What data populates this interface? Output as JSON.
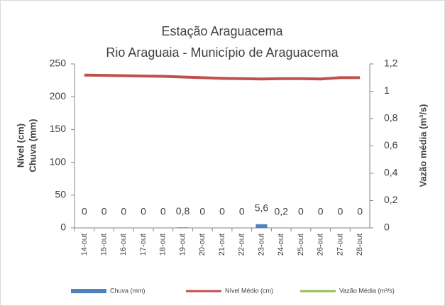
{
  "chart_data": {
    "type": "bar-line",
    "title": "Estação Araguacema",
    "subtitle": "Rio Araguaia - Município de Araguacema",
    "y_label_lines": [
      "Nível (cm)",
      "Chuva (mm)"
    ],
    "y2_label": "Vazão média (m³/s)",
    "categories": [
      "14-out",
      "15-out",
      "16-out",
      "17-out",
      "18-out",
      "19-out",
      "20-out",
      "21-out",
      "22-out",
      "23-out",
      "24-out",
      "25-out",
      "26-out",
      "27-out",
      "28-out"
    ],
    "ylim": [
      0,
      250
    ],
    "yticks": [
      0,
      50,
      100,
      150,
      200,
      250
    ],
    "y2lim": [
      0,
      1.2
    ],
    "y2ticks": [
      0,
      {
        "value": 0.2,
        "label": "0,2"
      },
      {
        "value": 0.4,
        "label": "0,4"
      },
      {
        "value": 0.6,
        "label": "0,6"
      },
      {
        "value": 0.8,
        "label": "0,8"
      },
      1,
      {
        "value": 1.2,
        "label": "1,2"
      }
    ],
    "grid": false,
    "legend": "bottom",
    "series": [
      {
        "name": "Chuva (mm)",
        "type": "bar",
        "color": "#4f81bd",
        "values": [
          0,
          0,
          0,
          0,
          0,
          0.8,
          0,
          0,
          0,
          5.6,
          0.2,
          0,
          0,
          0,
          0
        ],
        "value_labels": [
          "0",
          "0",
          "0",
          "0",
          "0",
          "0,8",
          "0",
          "0",
          "0",
          "5,6",
          "0,2",
          "0",
          "0",
          "0",
          "0"
        ]
      },
      {
        "name": "Nível Médio (cm)",
        "type": "line",
        "color": "#c0504d",
        "values": [
          233,
          232.5,
          232,
          231.5,
          231,
          230,
          229,
          228,
          227.5,
          227,
          227.5,
          227.5,
          227,
          229,
          229
        ]
      },
      {
        "name": "Vazão Média (m³/s)",
        "type": "line",
        "axis": "y2",
        "color": "#9bbb59",
        "values": [
          null,
          null,
          null,
          null,
          null,
          null,
          null,
          null,
          null,
          null,
          null,
          null,
          null,
          null,
          null
        ]
      }
    ]
  }
}
